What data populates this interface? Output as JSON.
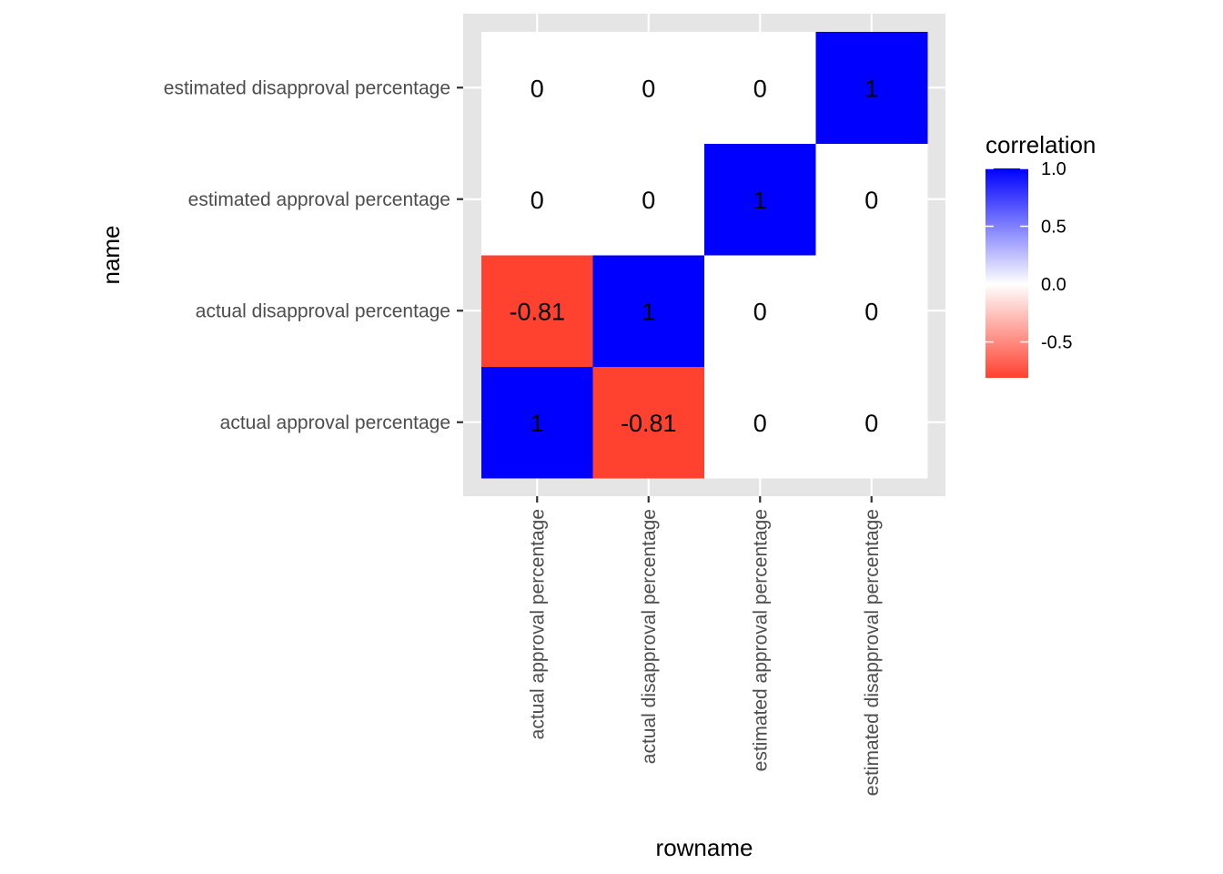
{
  "chart_data": {
    "type": "heatmap",
    "x_categories": [
      "actual approval percentage",
      "actual disapproval percentage",
      "estimated approval percentage",
      "estimated disapproval percentage"
    ],
    "y_categories": [
      "actual approval percentage",
      "actual disapproval percentage",
      "estimated approval percentage",
      "estimated disapproval percentage"
    ],
    "cells": [
      {
        "x": "actual approval percentage",
        "y": "actual approval percentage",
        "value": 1,
        "label": "1"
      },
      {
        "x": "actual disapproval percentage",
        "y": "actual approval percentage",
        "value": -0.81,
        "label": "-0.81"
      },
      {
        "x": "estimated approval percentage",
        "y": "actual approval percentage",
        "value": 0,
        "label": "0"
      },
      {
        "x": "estimated disapproval percentage",
        "y": "actual approval percentage",
        "value": 0,
        "label": "0"
      },
      {
        "x": "actual approval percentage",
        "y": "actual disapproval percentage",
        "value": -0.81,
        "label": "-0.81"
      },
      {
        "x": "actual disapproval percentage",
        "y": "actual disapproval percentage",
        "value": 1,
        "label": "1"
      },
      {
        "x": "estimated approval percentage",
        "y": "actual disapproval percentage",
        "value": 0,
        "label": "0"
      },
      {
        "x": "estimated disapproval percentage",
        "y": "actual disapproval percentage",
        "value": 0,
        "label": "0"
      },
      {
        "x": "actual approval percentage",
        "y": "estimated approval percentage",
        "value": 0,
        "label": "0"
      },
      {
        "x": "actual disapproval percentage",
        "y": "estimated approval percentage",
        "value": 0,
        "label": "0"
      },
      {
        "x": "estimated approval percentage",
        "y": "estimated approval percentage",
        "value": 1,
        "label": "1"
      },
      {
        "x": "estimated disapproval percentage",
        "y": "estimated approval percentage",
        "value": 0,
        "label": "0"
      },
      {
        "x": "actual approval percentage",
        "y": "estimated disapproval percentage",
        "value": 0,
        "label": "0"
      },
      {
        "x": "actual disapproval percentage",
        "y": "estimated disapproval percentage",
        "value": 0,
        "label": "0"
      },
      {
        "x": "estimated approval percentage",
        "y": "estimated disapproval percentage",
        "value": 0,
        "label": "0"
      },
      {
        "x": "estimated disapproval percentage",
        "y": "estimated disapproval percentage",
        "value": 1,
        "label": "1"
      }
    ],
    "xlabel": "rowname",
    "ylabel": "name",
    "legend": {
      "title": "correlation",
      "position": "right",
      "range": [
        -0.81,
        1
      ],
      "ticks": [
        {
          "value": 1.0,
          "label": "1.0"
        },
        {
          "value": 0.5,
          "label": "0.5"
        },
        {
          "value": 0.0,
          "label": "0.0"
        },
        {
          "value": -0.5,
          "label": "-0.5"
        }
      ],
      "low_color": "#ff4130",
      "mid_color": "#ffffff",
      "high_color": "#0000ff"
    },
    "panel_background": "#e5e5e5",
    "grid": true
  }
}
